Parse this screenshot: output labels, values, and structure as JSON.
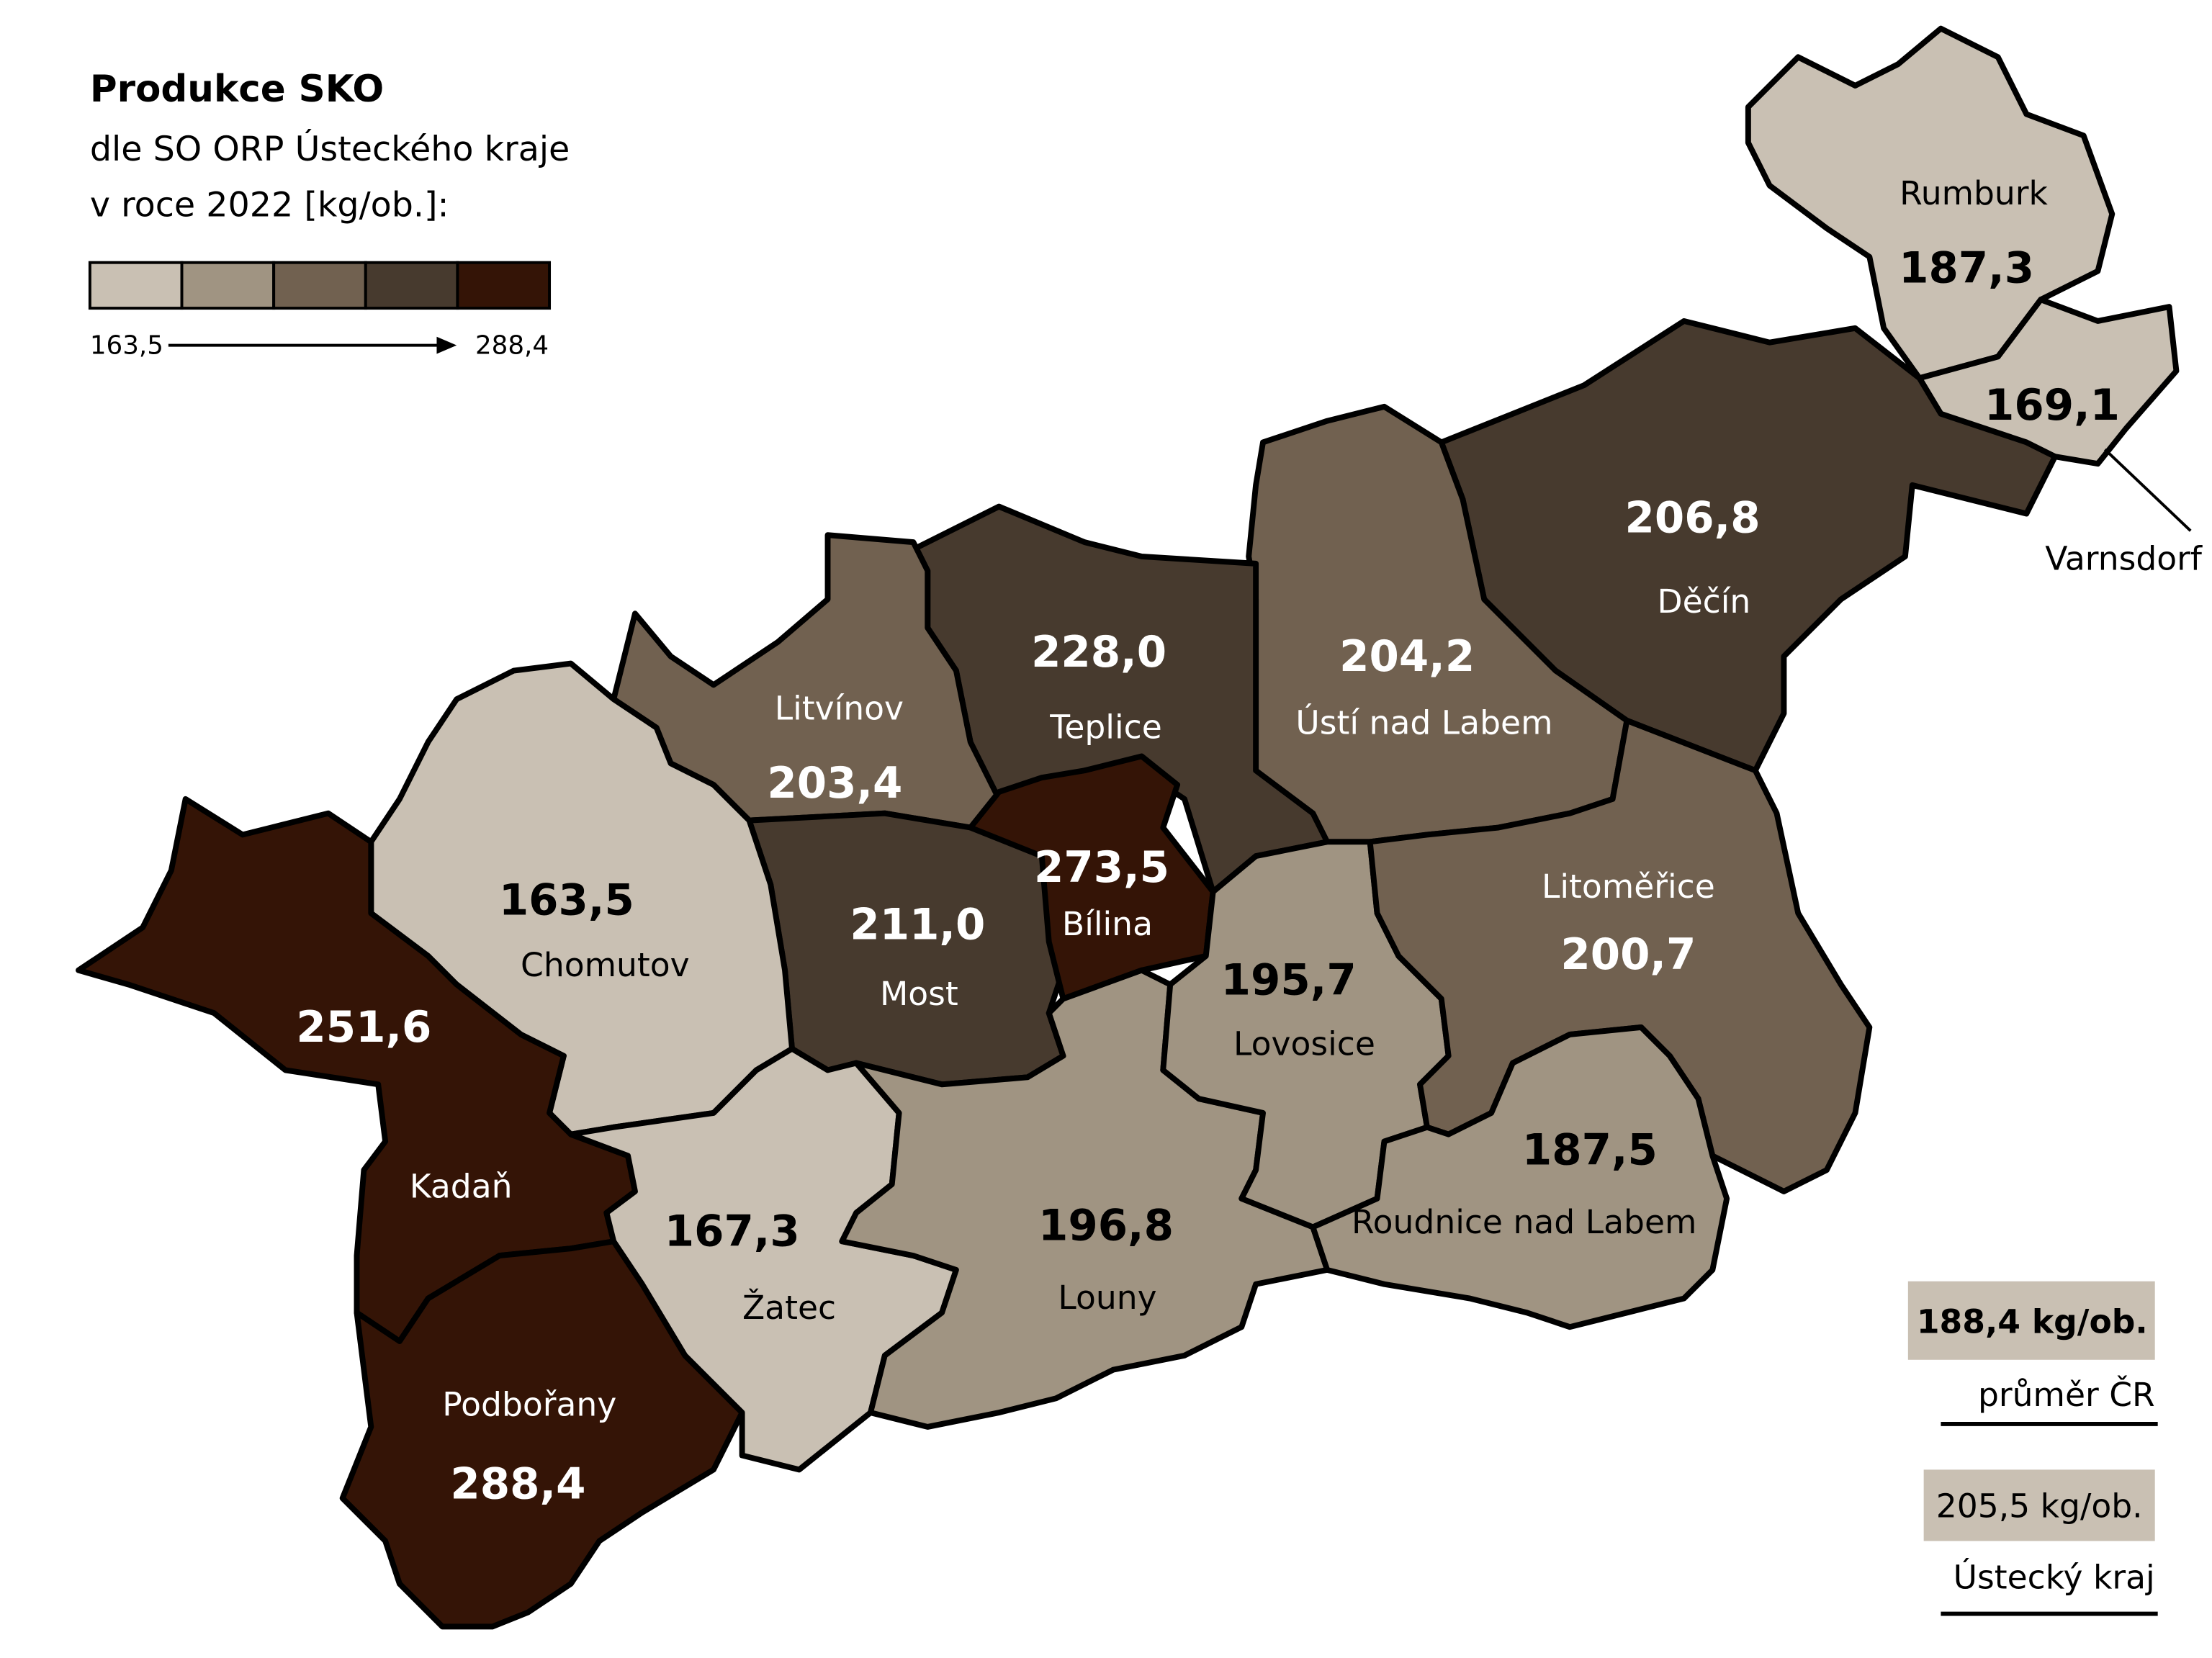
{
  "title": "Produkce SKO",
  "subtitle": [
    "dle SO ORP Ústeckého kraje",
    "v roce 2022 [kg/ob.]:"
  ],
  "legend": {
    "min": "163,5",
    "max": "288,4",
    "colors": [
      "#c9c0b3",
      "#a09482",
      "#716150",
      "#473a2e",
      "#341406"
    ]
  },
  "regions": [
    {
      "name": "Rumburk",
      "value": "187,3",
      "color": "#c9c0b3"
    },
    {
      "name": "Varnsdorf",
      "value": "169,1",
      "color": "#c9c0b3"
    },
    {
      "name": "Děčín",
      "value": "206,8",
      "color": "#473a2e"
    },
    {
      "name": "Ústí nad Labem",
      "value": "204,2",
      "color": "#716150"
    },
    {
      "name": "Teplice",
      "value": "228,0",
      "color": "#473a2e"
    },
    {
      "name": "Litvínov",
      "value": "203,4",
      "color": "#716150"
    },
    {
      "name": "Most",
      "value": "211,0",
      "color": "#473a2e"
    },
    {
      "name": "Bílina",
      "value": "273,5",
      "color": "#341406"
    },
    {
      "name": "Chomutov",
      "value": "163,5",
      "color": "#c9c0b3"
    },
    {
      "name": "Kadaň",
      "value": "251,6",
      "color": "#341406"
    },
    {
      "name": "Podbořany",
      "value": "288,4",
      "color": "#341406"
    },
    {
      "name": "Žatec",
      "value": "167,3",
      "color": "#c9c0b3"
    },
    {
      "name": "Louny",
      "value": "196,8",
      "color": "#a09482"
    },
    {
      "name": "Lovosice",
      "value": "195,7",
      "color": "#a09482"
    },
    {
      "name": "Litoměřice",
      "value": "200,7",
      "color": "#716150"
    },
    {
      "name": "Roudnice nad Labem",
      "value": "187,5",
      "color": "#a09482"
    }
  ],
  "summary": [
    {
      "value": "188,4 kg/ob.",
      "label": "průměr ČR"
    },
    {
      "value": "205,5 kg/ob.",
      "label": "Ústecký kraj"
    }
  ]
}
